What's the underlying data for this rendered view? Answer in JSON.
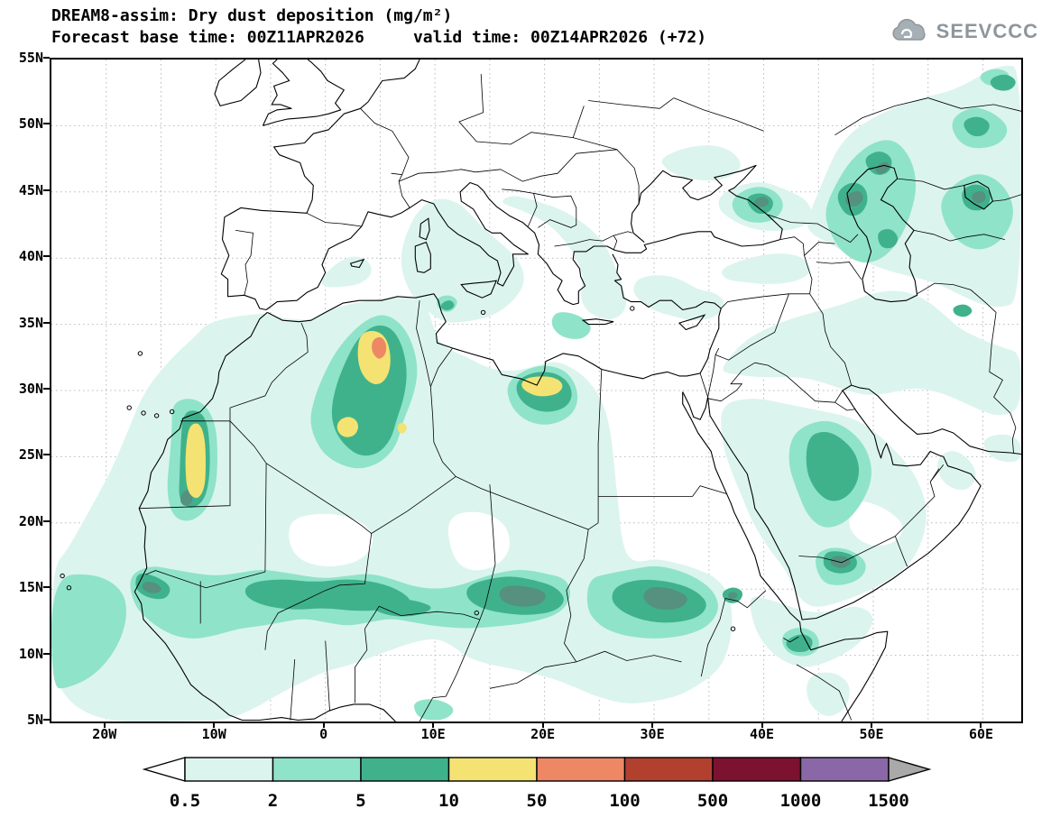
{
  "header": {
    "title_line1": "DREAM8-assim: Dry dust deposition (mg/m²)",
    "title_line2": "Forecast base time: 00Z11APR2026     valid time: 00Z14APR2026 (+72)"
  },
  "logo": {
    "text": "SEEVCCC"
  },
  "axes": {
    "lat_ticks": [
      {
        "label": "55N",
        "value": 55
      },
      {
        "label": "50N",
        "value": 50
      },
      {
        "label": "45N",
        "value": 45
      },
      {
        "label": "40N",
        "value": 40
      },
      {
        "label": "35N",
        "value": 35
      },
      {
        "label": "30N",
        "value": 30
      },
      {
        "label": "25N",
        "value": 25
      },
      {
        "label": "20N",
        "value": 20
      },
      {
        "label": "15N",
        "value": 15
      },
      {
        "label": "10N",
        "value": 10
      },
      {
        "label": "5N",
        "value": 5
      }
    ],
    "lon_ticks": [
      {
        "label": "20W",
        "value": -20
      },
      {
        "label": "10W",
        "value": -10
      },
      {
        "label": "0",
        "value": 0
      },
      {
        "label": "10E",
        "value": 10
      },
      {
        "label": "20E",
        "value": 20
      },
      {
        "label": "30E",
        "value": 30
      },
      {
        "label": "40E",
        "value": 40
      },
      {
        "label": "50E",
        "value": 50
      },
      {
        "label": "60E",
        "value": 60
      }
    ]
  },
  "colorbar": {
    "labels": [
      "0.5",
      "2",
      "5",
      "10",
      "50",
      "100",
      "500",
      "1000",
      "1500"
    ],
    "box_colors": [
      "#dcf4ee",
      "#8fe3c9",
      "#3fb28c",
      "#f4e372",
      "#ee8763",
      "#b2402f",
      "#7d1230",
      "#8a68a8"
    ],
    "left_arrow_color": "#ffffff",
    "right_arrow_color": "#a9a9a9",
    "outline_color": "#000000"
  },
  "palette": {
    "L1": "#dcf4ee",
    "L2": "#8fe3c9",
    "L3": "#3fb28c",
    "L3D": "#55917e",
    "L4": "#f4e372",
    "L5": "#ee8763",
    "W": "#ffffff"
  },
  "chart_data": {
    "type": "heatmap",
    "subtype": "filled-contour-forecast-map",
    "title": "DREAM8-assim: Dry dust deposition (mg/m²)",
    "units": "mg/m²",
    "forecast_base_time": "00Z11APR2026",
    "valid_time": "00Z14APR2026 (+72)",
    "lon_range": [
      -25,
      63.5
    ],
    "lat_range": [
      5,
      55
    ],
    "grid": "dotted graticule every 5 degrees",
    "legend_position": "bottom horizontal colorbar with arrow ends",
    "levels": [
      0.5,
      2,
      5,
      10,
      50,
      100,
      500,
      1000,
      1500
    ],
    "level_colors_below_to_above": [
      "#ffffff",
      "#dcf4ee",
      "#8fe3c9",
      "#3fb28c",
      "#f4e372",
      "#ee8763",
      "#b2402f",
      "#7d1230",
      "#8a68a8",
      "#a9a9a9"
    ],
    "features": [
      {
        "region": "Central Algeria plume",
        "approx_center_lon_lat": [
          5,
          33
        ],
        "peak_range_mg_m2": "50-100"
      },
      {
        "region": "Moroccan/Western Sahara coast",
        "approx_center_lon_lat": [
          -11.5,
          24.5
        ],
        "peak_range_mg_m2": "10-50"
      },
      {
        "region": "SW Algeria secondary maximum",
        "approx_center_lon_lat": [
          2,
          27
        ],
        "peak_range_mg_m2": "10-50"
      },
      {
        "region": "NE Libya plume",
        "approx_center_lon_lat": [
          19.8,
          30.3
        ],
        "peak_range_mg_m2": "10-50"
      },
      {
        "region": "Sahel band Senegal-Chad",
        "approx_center_lon_lat": [
          0,
          14.5
        ],
        "peak_range_mg_m2": "5-10"
      },
      {
        "region": "Sudan Sahel",
        "approx_center_lon_lat": [
          31,
          14
        ],
        "peak_range_mg_m2": "5-10"
      },
      {
        "region": "Eritrea highlands",
        "approx_center_lon_lat": [
          37,
          14.5
        ],
        "peak_range_mg_m2": "5-10"
      },
      {
        "region": "Yemen/Saudi border",
        "approx_center_lon_lat": [
          47,
          17
        ],
        "peak_range_mg_m2": "5-10"
      },
      {
        "region": "Central Saudi Arabia",
        "approx_center_lon_lat": [
          46,
          24
        ],
        "peak_range_mg_m2": "5-10"
      },
      {
        "region": "Horn of Africa / Djibouti",
        "approx_center_lon_lat": [
          43.5,
          11
        ],
        "peak_range_mg_m2": "5-10"
      },
      {
        "region": "NW Caspian / Pre-Caspian lowland",
        "approx_center_lon_lat": [
          48.5,
          45
        ],
        "peak_range_mg_m2": "5-10"
      },
      {
        "region": "East of Caspian / Aral region",
        "approx_center_lon_lat": [
          59.5,
          44.5
        ],
        "peak_range_mg_m2": "5-10"
      },
      {
        "region": "N Kazakhstan patches",
        "approx_center_lon_lat": [
          60,
          50
        ],
        "peak_range_mg_m2": "5-10"
      },
      {
        "region": "NE Black Sea",
        "approx_center_lon_lat": [
          39.5,
          44
        ],
        "peak_range_mg_m2": "5-10"
      },
      {
        "region": "Central Mediterranean / Italy / Balkans",
        "approx_center_lon_lat": [
          14,
          39
        ],
        "peak_range_mg_m2": "0.5-2"
      },
      {
        "region": "Middle East Iraq-Iran band",
        "approx_center_lon_lat": [
          48,
          33
        ],
        "peak_range_mg_m2": "0.5-2"
      }
    ]
  }
}
